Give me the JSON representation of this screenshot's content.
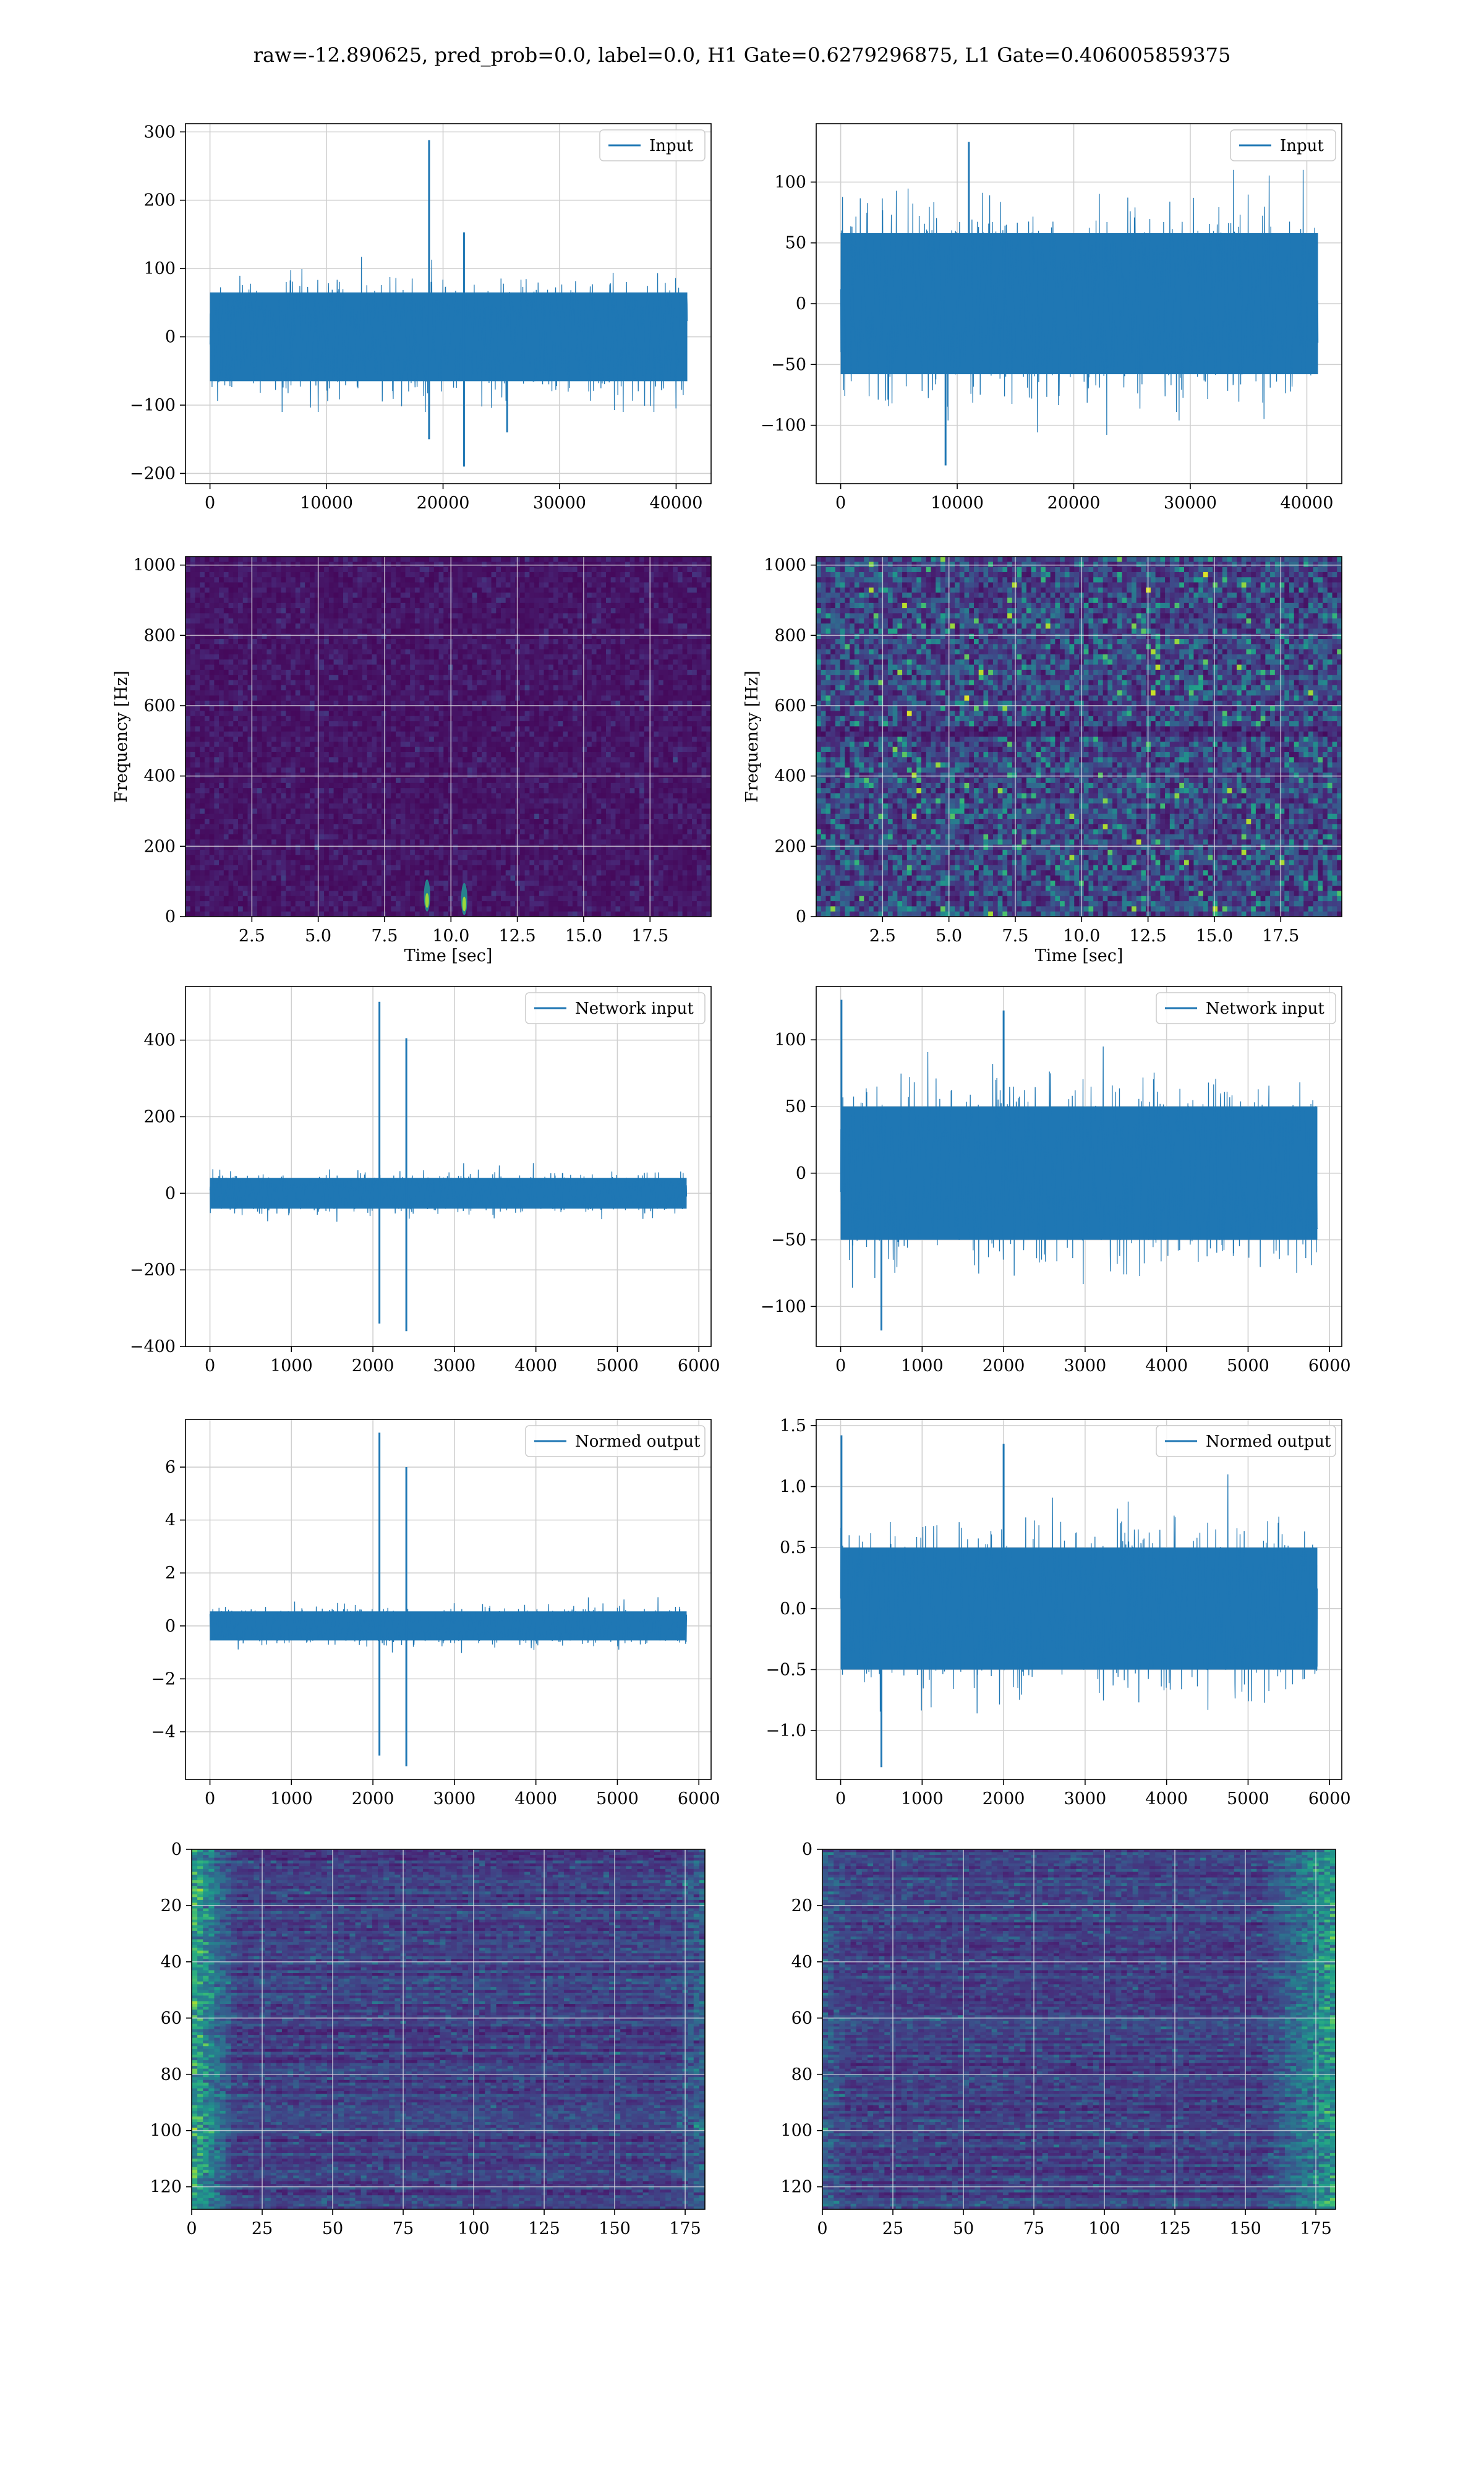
{
  "figure": {
    "title": "raw=-12.890625, pred_prob=0.0, label=0.0, H1 Gate=0.6279296875, L1 Gate=0.406005859375",
    "line_color": "#1f77b4",
    "grid_color": "#d0d0d0",
    "heatmap_colormap": "viridis"
  },
  "chart_data": [
    {
      "id": "r1c1",
      "type": "line",
      "series": [
        {
          "name": "Input"
        }
      ],
      "legend": "top-right",
      "xlim": [
        -2100,
        43000
      ],
      "ylim": [
        -215,
        312
      ],
      "xticks": [
        0,
        10000,
        20000,
        30000,
        40000
      ],
      "xtick_labels": [
        "0",
        "10000",
        "20000",
        "30000",
        "40000"
      ],
      "yticks": [
        -200,
        -100,
        0,
        100,
        200,
        300
      ],
      "ytick_labels": [
        "−200",
        "−100",
        "0",
        "100",
        "200",
        "300"
      ],
      "grid": true,
      "signal": {
        "x_range": [
          0,
          40960
        ],
        "envelope": 65,
        "peak_max": 130,
        "peak_min": -110
      },
      "spikes": [
        {
          "x": 18800,
          "y": 288
        },
        {
          "x": 18800,
          "y": -150
        },
        {
          "x": 21800,
          "y": 153
        },
        {
          "x": 21800,
          "y": -190
        },
        {
          "x": 25500,
          "y": -140
        }
      ]
    },
    {
      "id": "r1c2",
      "type": "line",
      "series": [
        {
          "name": "Input"
        }
      ],
      "legend": "top-right",
      "xlim": [
        -2100,
        43000
      ],
      "ylim": [
        -148,
        148
      ],
      "xticks": [
        0,
        10000,
        20000,
        30000,
        40000
      ],
      "xtick_labels": [
        "0",
        "10000",
        "20000",
        "30000",
        "40000"
      ],
      "yticks": [
        -100,
        -50,
        0,
        50,
        100
      ],
      "ytick_labels": [
        "−100",
        "−50",
        "0",
        "50",
        "100"
      ],
      "grid": true,
      "signal": {
        "x_range": [
          0,
          40960
        ],
        "envelope": 58,
        "peak_max": 110,
        "peak_min": -120
      },
      "spikes": [
        {
          "x": 11000,
          "y": 133
        },
        {
          "x": 9000,
          "y": -133
        }
      ]
    },
    {
      "id": "r2c1",
      "type": "heatmap",
      "xlim": [
        0,
        19.8
      ],
      "ylim": [
        0,
        1024
      ],
      "xticks": [
        2.5,
        5.0,
        7.5,
        10.0,
        12.5,
        15.0,
        17.5
      ],
      "xtick_labels": [
        "2.5",
        "5.0",
        "7.5",
        "10.0",
        "12.5",
        "15.0",
        "17.5"
      ],
      "yticks": [
        0,
        200,
        400,
        600,
        800,
        1000
      ],
      "ytick_labels": [
        "0",
        "200",
        "400",
        "600",
        "800",
        "1000"
      ],
      "xlabel": "Time [sec]",
      "ylabel": "Frequency [Hz]",
      "grid": true,
      "intensity": "low",
      "hotspots": [
        {
          "t": 9.1,
          "f": 60
        },
        {
          "t": 10.5,
          "f": 50
        }
      ]
    },
    {
      "id": "r2c2",
      "type": "heatmap",
      "xlim": [
        0,
        19.8
      ],
      "ylim": [
        0,
        1024
      ],
      "xticks": [
        2.5,
        5.0,
        7.5,
        10.0,
        12.5,
        15.0,
        17.5
      ],
      "xtick_labels": [
        "2.5",
        "5.0",
        "7.5",
        "10.0",
        "12.5",
        "15.0",
        "17.5"
      ],
      "yticks": [
        0,
        200,
        400,
        600,
        800,
        1000
      ],
      "ytick_labels": [
        "0",
        "200",
        "400",
        "600",
        "800",
        "1000"
      ],
      "xlabel": "Time [sec]",
      "ylabel": "Frequency [Hz]",
      "grid": true,
      "intensity": "high",
      "hotspots": []
    },
    {
      "id": "r3c1",
      "type": "line",
      "series": [
        {
          "name": "Network input"
        }
      ],
      "legend": "top-right",
      "xlim": [
        -300,
        6150
      ],
      "ylim": [
        -400,
        540
      ],
      "xticks": [
        0,
        1000,
        2000,
        3000,
        4000,
        5000,
        6000
      ],
      "xtick_labels": [
        "0",
        "1000",
        "2000",
        "3000",
        "4000",
        "5000",
        "6000"
      ],
      "yticks": [
        -400,
        -200,
        0,
        200,
        400
      ],
      "ytick_labels": [
        "−400",
        "−200",
        "0",
        "200",
        "400"
      ],
      "grid": true,
      "signal": {
        "x_range": [
          0,
          5850
        ],
        "envelope": 40,
        "peak_max": 100,
        "peak_min": -90
      },
      "spikes": [
        {
          "x": 2080,
          "y": 500
        },
        {
          "x": 2080,
          "y": -340
        },
        {
          "x": 2410,
          "y": 405
        },
        {
          "x": 2410,
          "y": -360
        }
      ]
    },
    {
      "id": "r3c2",
      "type": "line",
      "series": [
        {
          "name": "Network input"
        }
      ],
      "legend": "top-right",
      "xlim": [
        -300,
        6150
      ],
      "ylim": [
        -130,
        140
      ],
      "xticks": [
        0,
        1000,
        2000,
        3000,
        4000,
        5000,
        6000
      ],
      "xtick_labels": [
        "0",
        "1000",
        "2000",
        "3000",
        "4000",
        "5000",
        "6000"
      ],
      "yticks": [
        -100,
        -50,
        0,
        50,
        100
      ],
      "ytick_labels": [
        "−100",
        "−50",
        "0",
        "50",
        "100"
      ],
      "grid": true,
      "signal": {
        "x_range": [
          0,
          5850
        ],
        "envelope": 50,
        "peak_max": 95,
        "peak_min": -105
      },
      "spikes": [
        {
          "x": 10,
          "y": 130
        },
        {
          "x": 2000,
          "y": 122
        },
        {
          "x": 500,
          "y": -118
        }
      ]
    },
    {
      "id": "r4c1",
      "type": "line",
      "series": [
        {
          "name": "Normed output"
        }
      ],
      "legend": "top-right",
      "xlim": [
        -300,
        6150
      ],
      "ylim": [
        -5.8,
        7.8
      ],
      "xticks": [
        0,
        1000,
        2000,
        3000,
        4000,
        5000,
        6000
      ],
      "xtick_labels": [
        "0",
        "1000",
        "2000",
        "3000",
        "4000",
        "5000",
        "6000"
      ],
      "yticks": [
        -4,
        -2,
        0,
        2,
        4,
        6
      ],
      "ytick_labels": [
        "−4",
        "−2",
        "0",
        "2",
        "4",
        "6"
      ],
      "grid": true,
      "signal": {
        "x_range": [
          0,
          5850
        ],
        "envelope": 0.55,
        "peak_max": 1.4,
        "peak_min": -1.2
      },
      "spikes": [
        {
          "x": 2080,
          "y": 7.3
        },
        {
          "x": 2080,
          "y": -4.9
        },
        {
          "x": 2410,
          "y": 6.0
        },
        {
          "x": 2410,
          "y": -5.3
        }
      ]
    },
    {
      "id": "r4c2",
      "type": "line",
      "series": [
        {
          "name": "Normed output"
        }
      ],
      "legend": "top-right",
      "xlim": [
        -300,
        6150
      ],
      "ylim": [
        -1.4,
        1.55
      ],
      "xticks": [
        0,
        1000,
        2000,
        3000,
        4000,
        5000,
        6000
      ],
      "xtick_labels": [
        "0",
        "1000",
        "2000",
        "3000",
        "4000",
        "5000",
        "6000"
      ],
      "yticks": [
        -1.0,
        -0.5,
        0.0,
        0.5,
        1.0,
        1.5
      ],
      "ytick_labels": [
        "−1.0",
        "−0.5",
        "0.0",
        "0.5",
        "1.0",
        "1.5"
      ],
      "grid": true,
      "signal": {
        "x_range": [
          0,
          5850
        ],
        "envelope": 0.5,
        "peak_max": 1.1,
        "peak_min": -1.1
      },
      "spikes": [
        {
          "x": 10,
          "y": 1.42
        },
        {
          "x": 2000,
          "y": 1.35
        },
        {
          "x": 500,
          "y": -1.3
        }
      ]
    },
    {
      "id": "r5c1",
      "type": "heatmap",
      "xlim": [
        0,
        182
      ],
      "ylim": [
        0,
        128
      ],
      "y_inverted": true,
      "xticks": [
        0,
        25,
        50,
        75,
        100,
        125,
        150,
        175
      ],
      "xtick_labels": [
        "0",
        "25",
        "50",
        "75",
        "100",
        "125",
        "150",
        "175"
      ],
      "yticks": [
        0,
        20,
        40,
        60,
        80,
        100,
        120
      ],
      "ytick_labels": [
        "0",
        "20",
        "40",
        "60",
        "80",
        "100",
        "120"
      ],
      "grid": true,
      "bright_edges": "left"
    },
    {
      "id": "r5c2",
      "type": "heatmap",
      "xlim": [
        0,
        182
      ],
      "ylim": [
        0,
        128
      ],
      "y_inverted": true,
      "xticks": [
        0,
        25,
        50,
        75,
        100,
        125,
        150,
        175
      ],
      "xtick_labels": [
        "0",
        "25",
        "50",
        "75",
        "100",
        "125",
        "150",
        "175"
      ],
      "yticks": [
        0,
        20,
        40,
        60,
        80,
        100,
        120
      ],
      "ytick_labels": [
        "0",
        "20",
        "40",
        "60",
        "80",
        "100",
        "120"
      ],
      "grid": true,
      "bright_edges": "right"
    }
  ]
}
